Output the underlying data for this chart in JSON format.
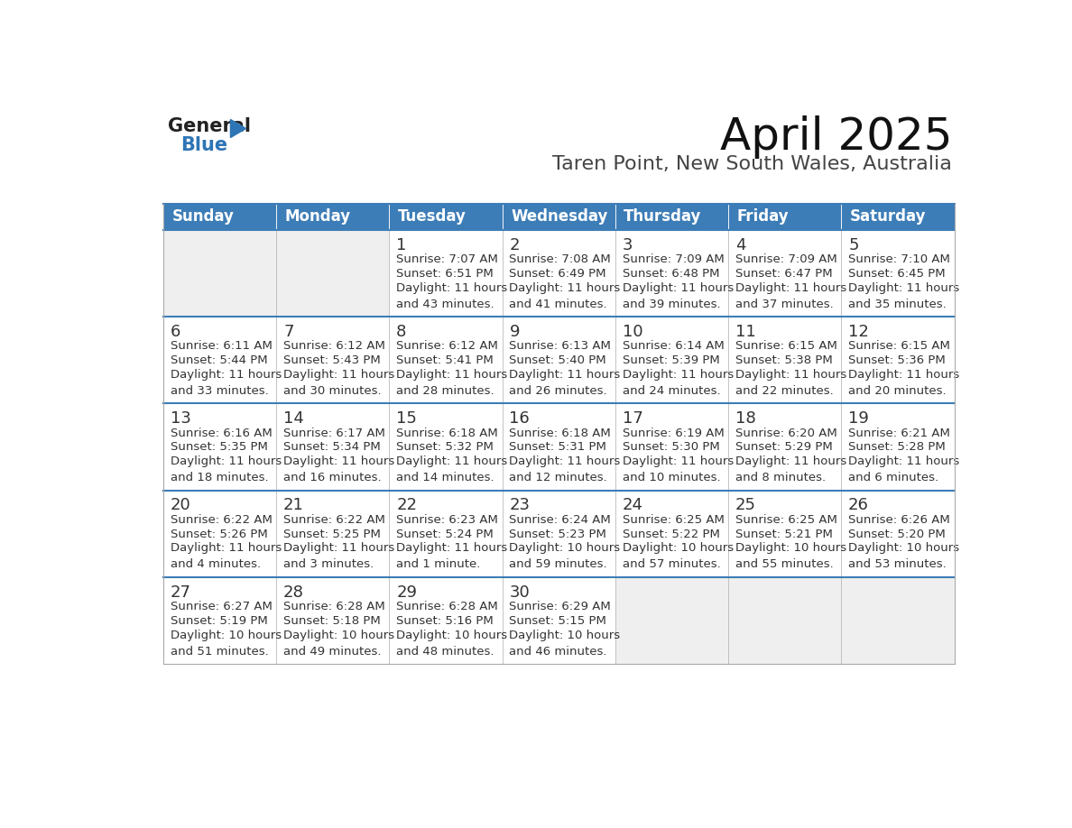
{
  "title": "April 2025",
  "subtitle": "Taren Point, New South Wales, Australia",
  "days_of_week": [
    "Sunday",
    "Monday",
    "Tuesday",
    "Wednesday",
    "Thursday",
    "Friday",
    "Saturday"
  ],
  "header_bg": "#3D7DB7",
  "header_text": "#FFFFFF",
  "cell_bg_white": "#FFFFFF",
  "cell_bg_gray": "#EFEFEF",
  "row_line_color": "#3D7DB7",
  "text_color": "#333333",
  "border_color": "#AAAAAA",
  "calendar_data": [
    [
      {
        "day": "",
        "sunrise": "",
        "sunset": "",
        "daylight": ""
      },
      {
        "day": "",
        "sunrise": "",
        "sunset": "",
        "daylight": ""
      },
      {
        "day": "1",
        "sunrise": "7:07 AM",
        "sunset": "6:51 PM",
        "daylight": "11 hours\nand 43 minutes."
      },
      {
        "day": "2",
        "sunrise": "7:08 AM",
        "sunset": "6:49 PM",
        "daylight": "11 hours\nand 41 minutes."
      },
      {
        "day": "3",
        "sunrise": "7:09 AM",
        "sunset": "6:48 PM",
        "daylight": "11 hours\nand 39 minutes."
      },
      {
        "day": "4",
        "sunrise": "7:09 AM",
        "sunset": "6:47 PM",
        "daylight": "11 hours\nand 37 minutes."
      },
      {
        "day": "5",
        "sunrise": "7:10 AM",
        "sunset": "6:45 PM",
        "daylight": "11 hours\nand 35 minutes."
      }
    ],
    [
      {
        "day": "6",
        "sunrise": "6:11 AM",
        "sunset": "5:44 PM",
        "daylight": "11 hours\nand 33 minutes."
      },
      {
        "day": "7",
        "sunrise": "6:12 AM",
        "sunset": "5:43 PM",
        "daylight": "11 hours\nand 30 minutes."
      },
      {
        "day": "8",
        "sunrise": "6:12 AM",
        "sunset": "5:41 PM",
        "daylight": "11 hours\nand 28 minutes."
      },
      {
        "day": "9",
        "sunrise": "6:13 AM",
        "sunset": "5:40 PM",
        "daylight": "11 hours\nand 26 minutes."
      },
      {
        "day": "10",
        "sunrise": "6:14 AM",
        "sunset": "5:39 PM",
        "daylight": "11 hours\nand 24 minutes."
      },
      {
        "day": "11",
        "sunrise": "6:15 AM",
        "sunset": "5:38 PM",
        "daylight": "11 hours\nand 22 minutes."
      },
      {
        "day": "12",
        "sunrise": "6:15 AM",
        "sunset": "5:36 PM",
        "daylight": "11 hours\nand 20 minutes."
      }
    ],
    [
      {
        "day": "13",
        "sunrise": "6:16 AM",
        "sunset": "5:35 PM",
        "daylight": "11 hours\nand 18 minutes."
      },
      {
        "day": "14",
        "sunrise": "6:17 AM",
        "sunset": "5:34 PM",
        "daylight": "11 hours\nand 16 minutes."
      },
      {
        "day": "15",
        "sunrise": "6:18 AM",
        "sunset": "5:32 PM",
        "daylight": "11 hours\nand 14 minutes."
      },
      {
        "day": "16",
        "sunrise": "6:18 AM",
        "sunset": "5:31 PM",
        "daylight": "11 hours\nand 12 minutes."
      },
      {
        "day": "17",
        "sunrise": "6:19 AM",
        "sunset": "5:30 PM",
        "daylight": "11 hours\nand 10 minutes."
      },
      {
        "day": "18",
        "sunrise": "6:20 AM",
        "sunset": "5:29 PM",
        "daylight": "11 hours\nand 8 minutes."
      },
      {
        "day": "19",
        "sunrise": "6:21 AM",
        "sunset": "5:28 PM",
        "daylight": "11 hours\nand 6 minutes."
      }
    ],
    [
      {
        "day": "20",
        "sunrise": "6:22 AM",
        "sunset": "5:26 PM",
        "daylight": "11 hours\nand 4 minutes."
      },
      {
        "day": "21",
        "sunrise": "6:22 AM",
        "sunset": "5:25 PM",
        "daylight": "11 hours\nand 3 minutes."
      },
      {
        "day": "22",
        "sunrise": "6:23 AM",
        "sunset": "5:24 PM",
        "daylight": "11 hours\nand 1 minute."
      },
      {
        "day": "23",
        "sunrise": "6:24 AM",
        "sunset": "5:23 PM",
        "daylight": "10 hours\nand 59 minutes."
      },
      {
        "day": "24",
        "sunrise": "6:25 AM",
        "sunset": "5:22 PM",
        "daylight": "10 hours\nand 57 minutes."
      },
      {
        "day": "25",
        "sunrise": "6:25 AM",
        "sunset": "5:21 PM",
        "daylight": "10 hours\nand 55 minutes."
      },
      {
        "day": "26",
        "sunrise": "6:26 AM",
        "sunset": "5:20 PM",
        "daylight": "10 hours\nand 53 minutes."
      }
    ],
    [
      {
        "day": "27",
        "sunrise": "6:27 AM",
        "sunset": "5:19 PM",
        "daylight": "10 hours\nand 51 minutes."
      },
      {
        "day": "28",
        "sunrise": "6:28 AM",
        "sunset": "5:18 PM",
        "daylight": "10 hours\nand 49 minutes."
      },
      {
        "day": "29",
        "sunrise": "6:28 AM",
        "sunset": "5:16 PM",
        "daylight": "10 hours\nand 48 minutes."
      },
      {
        "day": "30",
        "sunrise": "6:29 AM",
        "sunset": "5:15 PM",
        "daylight": "10 hours\nand 46 minutes."
      },
      {
        "day": "",
        "sunrise": "",
        "sunset": "",
        "daylight": ""
      },
      {
        "day": "",
        "sunrise": "",
        "sunset": "",
        "daylight": ""
      },
      {
        "day": "",
        "sunrise": "",
        "sunset": "",
        "daylight": ""
      }
    ]
  ],
  "logo_text1": "General",
  "logo_text2": "Blue",
  "logo_color1": "#222222",
  "logo_color2": "#2E75B6",
  "logo_triangle_color": "#2E75B6",
  "title_fontsize": 36,
  "subtitle_fontsize": 16,
  "header_fontsize": 12,
  "day_num_fontsize": 13,
  "cell_fontsize": 9.5
}
